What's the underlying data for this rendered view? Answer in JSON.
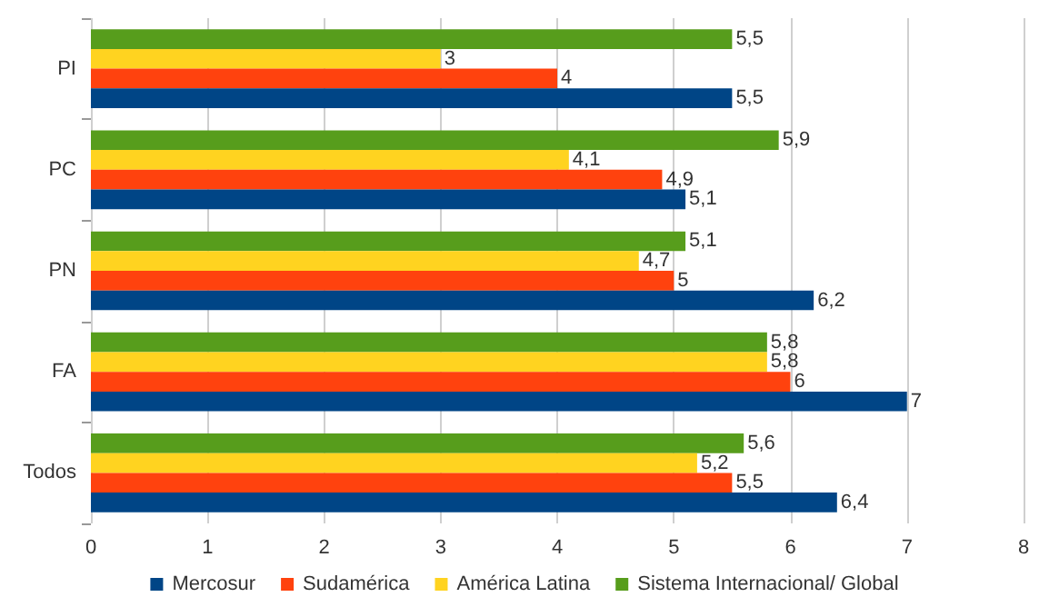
{
  "chart_data": {
    "type": "bar",
    "orientation": "horizontal",
    "categories": [
      "PI",
      "PC",
      "PN",
      "FA",
      "Todos"
    ],
    "series": [
      {
        "name": "Mercosur",
        "color": "#004586",
        "values": [
          5.5,
          5.1,
          6.2,
          7,
          6.4
        ],
        "value_labels": [
          "5,5",
          "5,1",
          "6,2",
          "7",
          "6,4"
        ]
      },
      {
        "name": "Sudamérica",
        "color": "#ff420e",
        "values": [
          4,
          4.9,
          5,
          6,
          5.5
        ],
        "value_labels": [
          "4",
          "4,9",
          "5",
          "6",
          "5,5"
        ]
      },
      {
        "name": "América Latina",
        "color": "#ffd320",
        "values": [
          3,
          4.1,
          4.7,
          5.8,
          5.2
        ],
        "value_labels": [
          "3",
          "4,1",
          "4,7",
          "5,8",
          "5,2"
        ]
      },
      {
        "name": "Sistema Internacional/ Global",
        "color": "#579d1c",
        "values": [
          5.5,
          5.9,
          5.1,
          5.8,
          5.6
        ],
        "value_labels": [
          "5,5",
          "5,9",
          "5,1",
          "5,8",
          "5,6"
        ]
      }
    ],
    "xlim": [
      0,
      8
    ],
    "xticks": [
      0,
      1,
      2,
      3,
      4,
      5,
      6,
      7,
      8
    ],
    "grid": "x",
    "legend": "bottom"
  }
}
